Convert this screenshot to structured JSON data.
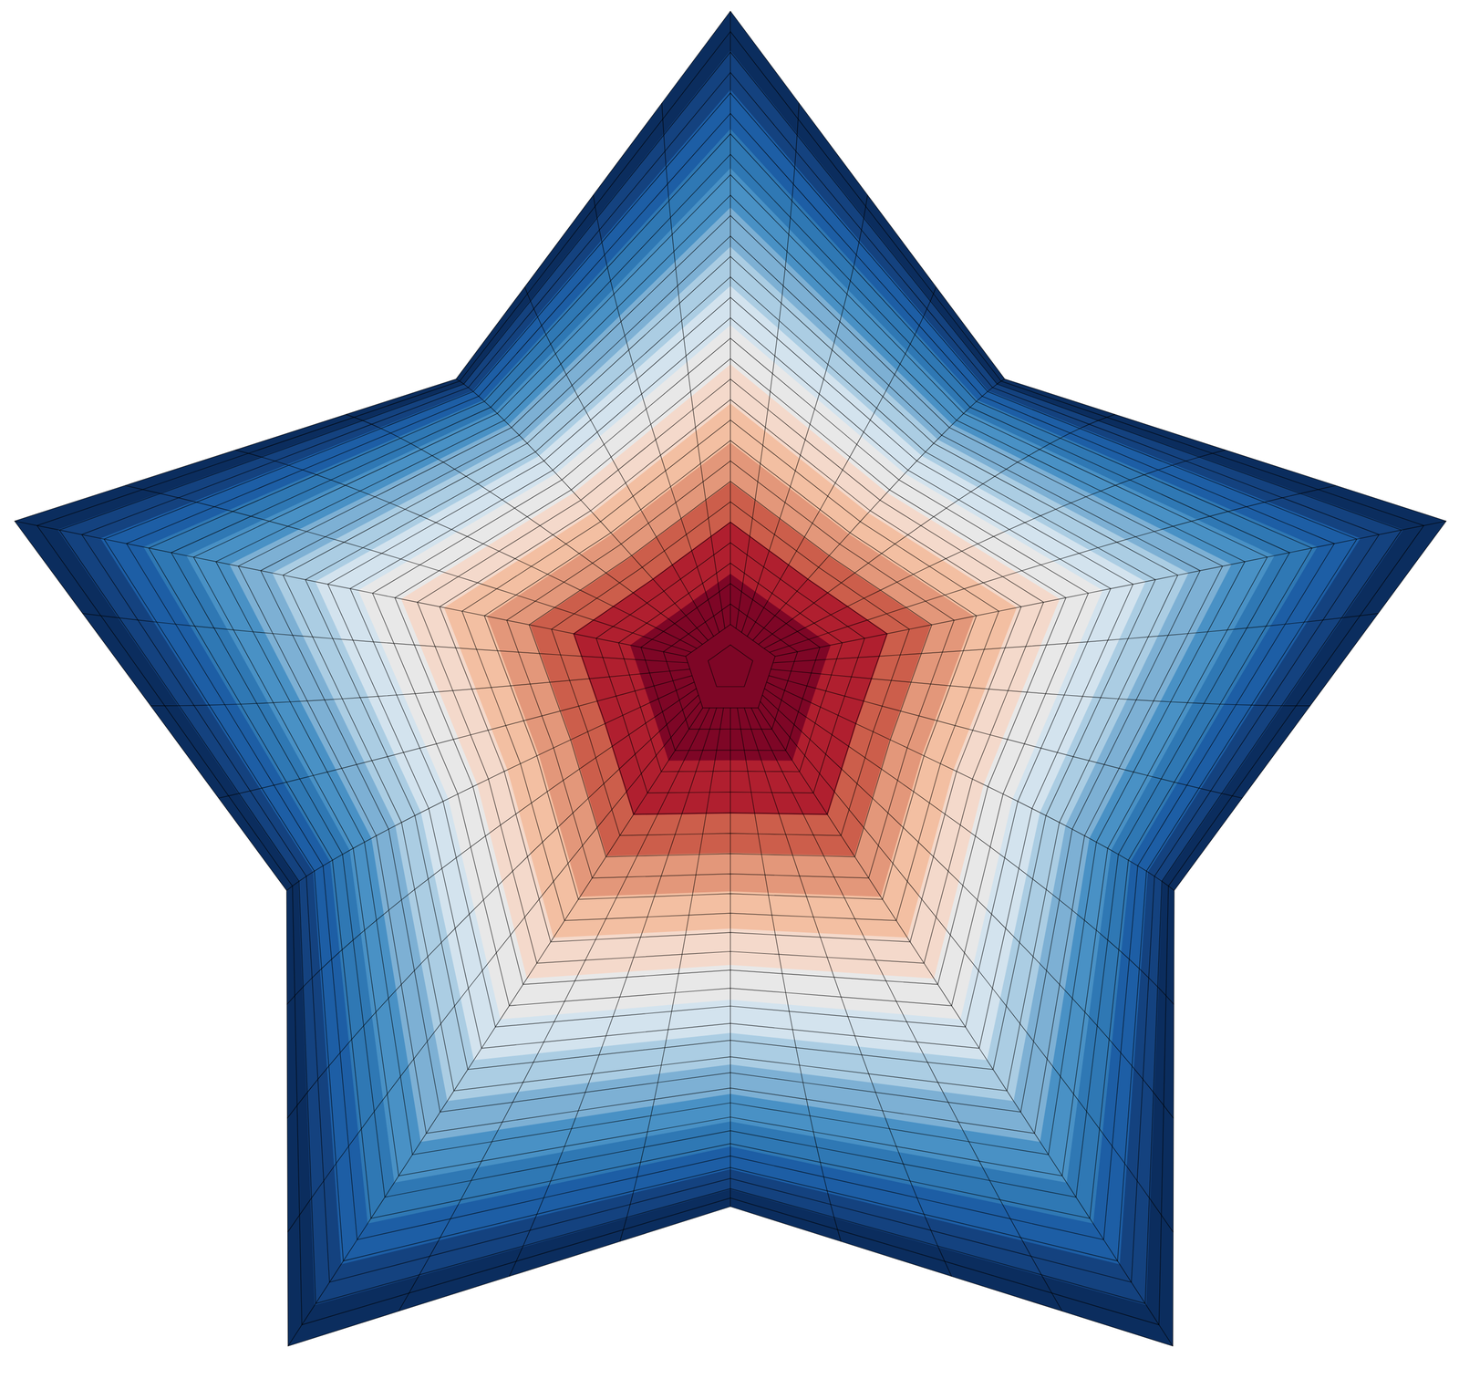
{
  "chart_data": {
    "type": "contour",
    "shape": "star",
    "zlim": [
      0,
      1
    ],
    "levels": [
      0,
      0.06,
      0.12,
      0.18,
      0.24,
      0.3,
      0.36,
      0.42,
      0.48,
      0.54,
      0.6,
      0.66,
      0.72,
      0.78,
      0.86
    ],
    "colors": [
      "#0b2d5e",
      "#14427f",
      "#1d5ea5",
      "#2f78b4",
      "#4991c5",
      "#7db0d4",
      "#abcde3",
      "#d3e3ee",
      "#e8e8e8",
      "#f4d9cb",
      "#f3bfa2",
      "#e3977a",
      "#cc5e4b",
      "#b01f2f",
      "#7e0626"
    ],
    "tick_labels": false,
    "grid": true
  }
}
